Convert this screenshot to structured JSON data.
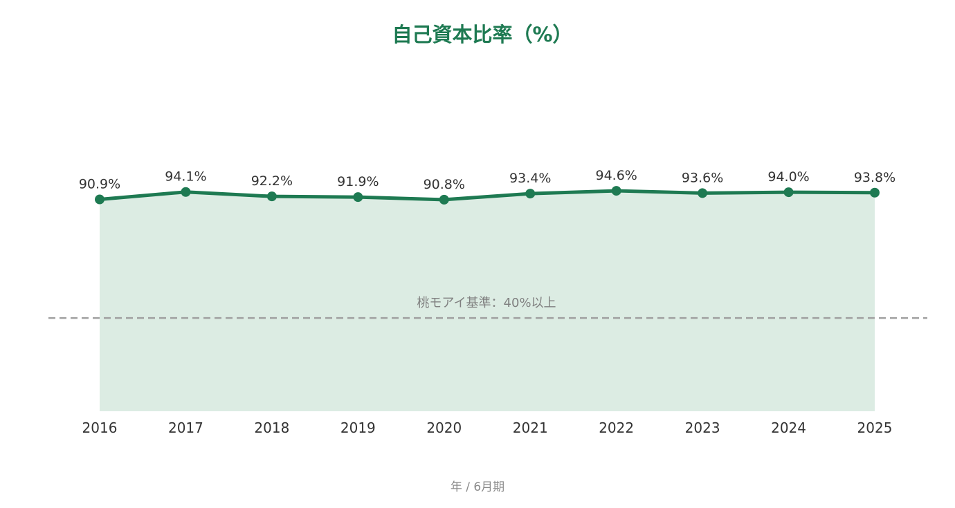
{
  "chart_data": {
    "type": "area",
    "title": "自己資本比率（%）",
    "xlabel": "年 / 6月期",
    "ylabel": "",
    "categories": [
      "2016",
      "2017",
      "2018",
      "2019",
      "2020",
      "2021",
      "2022",
      "2023",
      "2024",
      "2025"
    ],
    "values": [
      90.9,
      94.1,
      92.2,
      91.9,
      90.8,
      93.4,
      94.6,
      93.6,
      94.0,
      93.8
    ],
    "data_labels": [
      "90.9%",
      "94.1%",
      "92.2%",
      "91.9%",
      "90.8%",
      "93.4%",
      "94.6%",
      "93.6%",
      "94.0%",
      "93.8%"
    ],
    "ylim": [
      0,
      140
    ],
    "reference_line": {
      "value": 40,
      "label": "桃モアイ基準：40%以上",
      "style": "dashed"
    },
    "grid": false,
    "legend": "none",
    "colors": {
      "line": "#1e7a52",
      "fill": "#dcece3",
      "title": "#1e7a52",
      "reference": "#a0a0a0"
    }
  }
}
